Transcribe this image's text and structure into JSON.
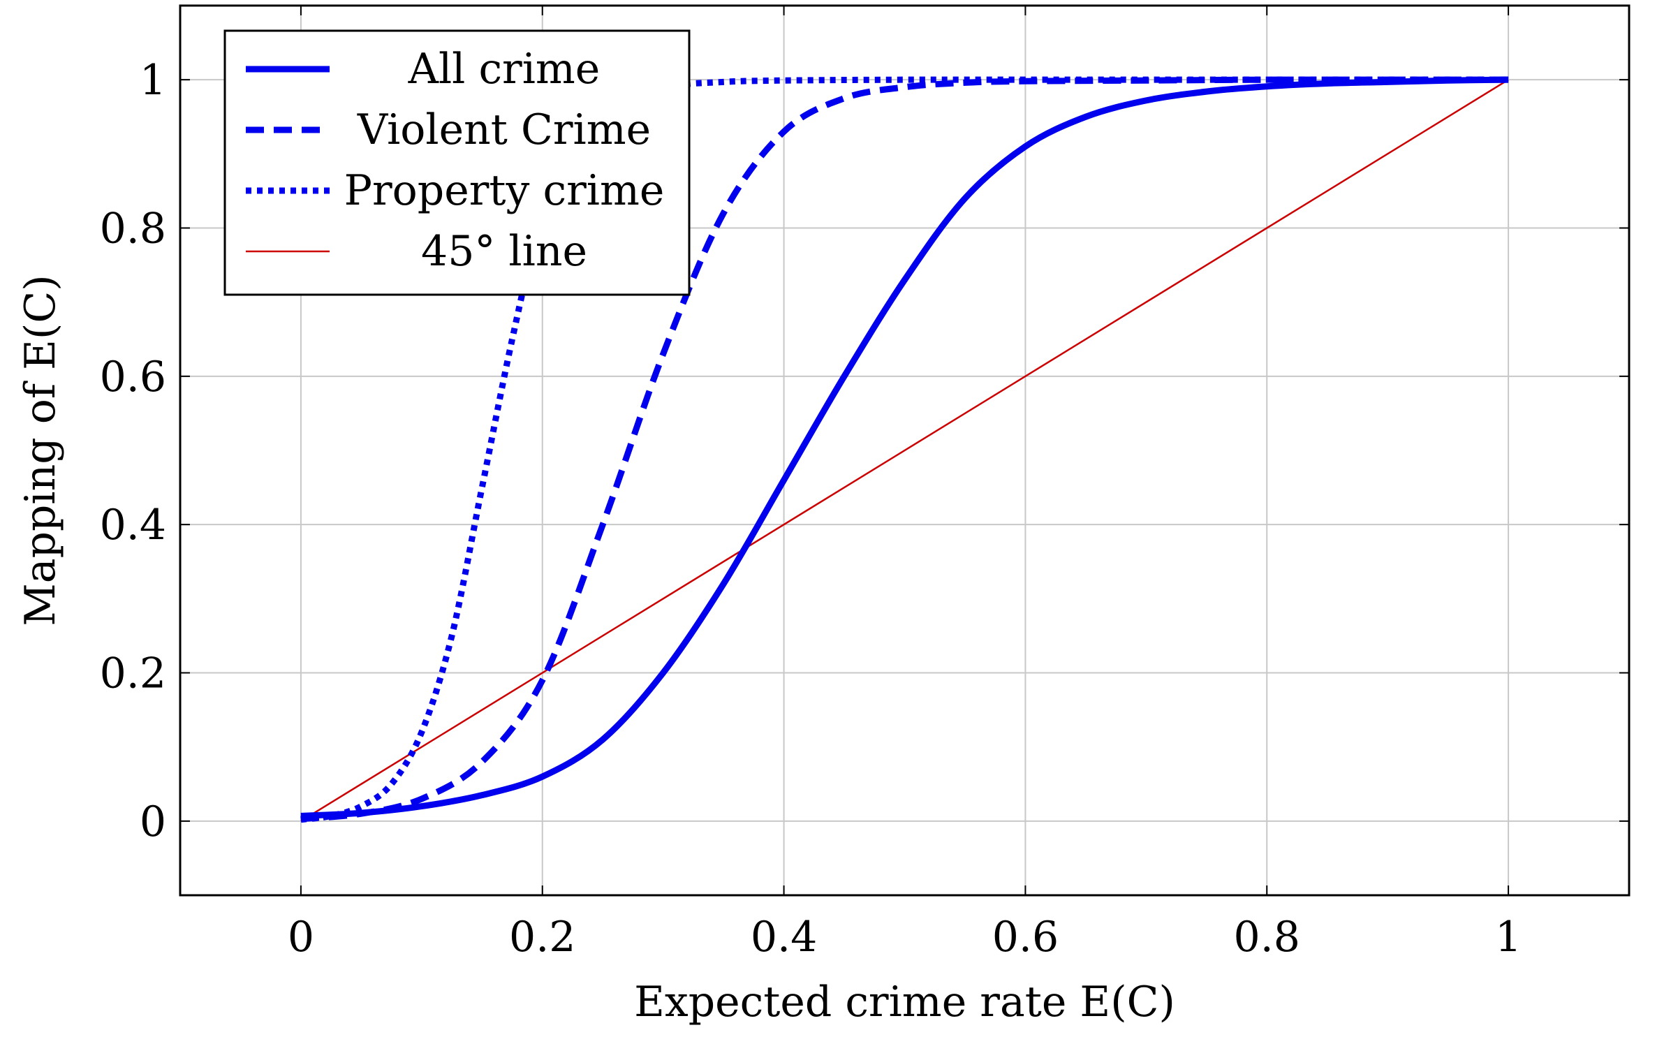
{
  "chart_data": {
    "type": "line",
    "title": "",
    "xlabel": "Expected crime rate E(C)",
    "ylabel": "Mapping of E(C)",
    "xlim": [
      -0.1,
      1.1
    ],
    "ylim": [
      -0.1,
      1.1
    ],
    "x_ticks": [
      0,
      0.2,
      0.4,
      0.6,
      0.8,
      1
    ],
    "y_ticks": [
      0,
      0.2,
      0.4,
      0.6,
      0.8,
      1
    ],
    "x_tick_labels": [
      "0",
      "0.2",
      "0.4",
      "0.6",
      "0.8",
      "1"
    ],
    "y_tick_labels": [
      "0",
      "0.2",
      "0.4",
      "0.6",
      "0.8",
      "1"
    ],
    "grid": true,
    "legend_position": "top-left",
    "series": [
      {
        "name": "All crime",
        "color": "#0000ee",
        "style": "solid-thick",
        "x": [
          0,
          0.05,
          0.1,
          0.15,
          0.2,
          0.25,
          0.3,
          0.35,
          0.4,
          0.45,
          0.5,
          0.55,
          0.6,
          0.65,
          0.7,
          0.75,
          0.8,
          0.85,
          0.9,
          0.95,
          1
        ],
        "y": [
          0.007,
          0.011,
          0.02,
          0.035,
          0.06,
          0.11,
          0.2,
          0.32,
          0.46,
          0.6,
          0.73,
          0.84,
          0.91,
          0.95,
          0.972,
          0.984,
          0.991,
          0.995,
          0.997,
          0.999,
          1
        ]
      },
      {
        "name": "Violent Crime",
        "color": "#0000ee",
        "style": "dashed-thick",
        "x": [
          0,
          0.05,
          0.1,
          0.15,
          0.2,
          0.25,
          0.3,
          0.35,
          0.4,
          0.45,
          0.5,
          0.55,
          0.6,
          0.7,
          0.8,
          0.9,
          1
        ],
        "y": [
          0.003,
          0.01,
          0.03,
          0.08,
          0.19,
          0.4,
          0.63,
          0.82,
          0.93,
          0.975,
          0.99,
          0.996,
          0.998,
          0.999,
          1,
          1,
          1
        ]
      },
      {
        "name": "Property crime",
        "color": "#0000ee",
        "style": "dotted-thick",
        "x": [
          0,
          0.025,
          0.05,
          0.075,
          0.1,
          0.125,
          0.15,
          0.175,
          0.2,
          0.225,
          0.25,
          0.3,
          0.35,
          0.4,
          0.5,
          0.6,
          0.8,
          1
        ],
        "y": [
          0.002,
          0.007,
          0.02,
          0.05,
          0.12,
          0.25,
          0.45,
          0.65,
          0.82,
          0.92,
          0.965,
          0.99,
          0.997,
          0.999,
          1,
          1,
          1,
          1
        ]
      },
      {
        "name": "45° line",
        "color": "#cc0000",
        "style": "solid-thin",
        "x": [
          0,
          1
        ],
        "y": [
          0,
          1
        ]
      }
    ]
  }
}
